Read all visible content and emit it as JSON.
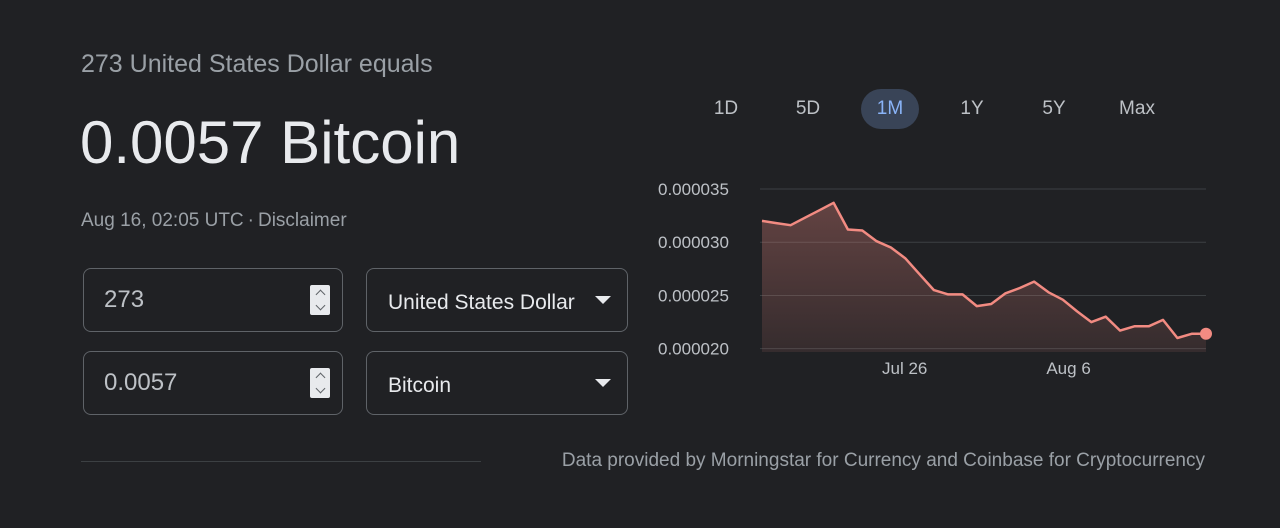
{
  "header": {
    "equals_text": "273 United States Dollar equals",
    "result_text": "0.0057 Bitcoin",
    "timestamp": "Aug 16, 02:05 UTC",
    "separator": "·",
    "disclaimer": "Disclaimer"
  },
  "converter": {
    "from_amount": "273",
    "from_currency": "United States Dollar",
    "to_amount": "0.0057",
    "to_currency": "Bitcoin"
  },
  "range_tabs": [
    {
      "label": "1D",
      "active": false
    },
    {
      "label": "5D",
      "active": false
    },
    {
      "label": "1M",
      "active": true
    },
    {
      "label": "1Y",
      "active": false
    },
    {
      "label": "5Y",
      "active": false
    },
    {
      "label": "Max",
      "active": false
    }
  ],
  "colors": {
    "line": "#f28b82",
    "active_tab_bg": "#394457",
    "active_tab_text": "#8ab4f8"
  },
  "chart_data": {
    "type": "area",
    "ylim": [
      1.95e-05,
      3.5e-05
    ],
    "y_ticks": [
      {
        "value": 3.5e-05,
        "label": "0.000035"
      },
      {
        "value": 3e-05,
        "label": "0.000030"
      },
      {
        "value": 2.5e-05,
        "label": "0.000025"
      },
      {
        "value": 2e-05,
        "label": "0.000020"
      }
    ],
    "x_range": [
      0,
      42
    ],
    "x_ticks": [
      {
        "index": 13.5,
        "label": "Jul 26"
      },
      {
        "index": 29,
        "label": "Aug 6"
      }
    ],
    "grid": true,
    "values": [
      3.2e-05,
      3.18e-05,
      3.16e-05,
      3.23e-05,
      3.3e-05,
      3.37e-05,
      3.12e-05,
      3.11e-05,
      3.01e-05,
      2.95e-05,
      2.85e-05,
      2.7e-05,
      2.55e-05,
      2.51e-05,
      2.51e-05,
      2.4e-05,
      2.42e-05,
      2.52e-05,
      2.57e-05,
      2.63e-05,
      2.53e-05,
      2.46e-05,
      2.35e-05,
      2.25e-05,
      2.3e-05,
      2.17e-05,
      2.21e-05,
      2.21e-05,
      2.27e-05,
      2.1e-05,
      2.14e-05,
      2.14e-05
    ]
  },
  "footer": {
    "source": "Data provided by Morningstar for Currency and Coinbase for Cryptocurrency"
  }
}
